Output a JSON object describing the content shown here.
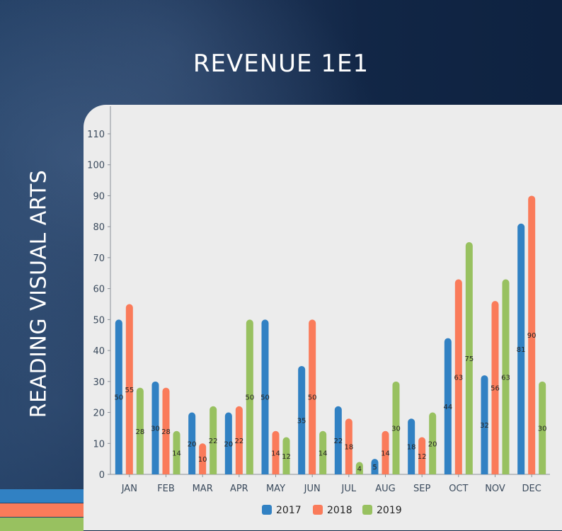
{
  "page": {
    "title": "REVENUE 1E1",
    "side_title": "READING VISUAL ARTS"
  },
  "chart_data": {
    "type": "bar",
    "title": "REVENUE 1E1",
    "categories": [
      "JAN",
      "FEB",
      "MAR",
      "APR",
      "MAY",
      "JUN",
      "JUL",
      "AUG",
      "SEP",
      "OCT",
      "NOV",
      "DEC"
    ],
    "series": [
      {
        "name": "2017",
        "color": "#3181c3",
        "values": [
          50,
          30,
          20,
          20,
          50,
          35,
          22,
          5,
          18,
          44,
          32,
          81
        ]
      },
      {
        "name": "2018",
        "color": "#fa7b5a",
        "values": [
          55,
          28,
          10,
          22,
          14,
          50,
          18,
          14,
          12,
          63,
          56,
          90
        ]
      },
      {
        "name": "2019",
        "color": "#98c160",
        "values": [
          28,
          14,
          22,
          50,
          12,
          14,
          4,
          30,
          20,
          75,
          63,
          30
        ]
      }
    ],
    "ylim": [
      0,
      110
    ],
    "yticks": [
      0,
      10,
      20,
      30,
      40,
      50,
      60,
      70,
      80,
      90,
      100,
      110
    ],
    "grid": false,
    "legend": "bottom"
  }
}
